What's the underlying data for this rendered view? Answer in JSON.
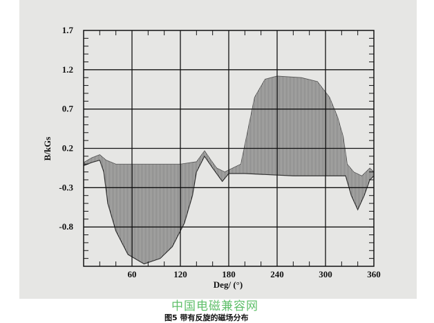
{
  "chart_data": {
    "type": "area",
    "title": "",
    "caption": "图5 带有反旋的磁场分布",
    "watermark": "中国电磁兼容网",
    "xlabel": "Deg/ (°)",
    "ylabel": "B/kGs",
    "xlim": [
      0,
      360
    ],
    "ylim": [
      -1.3,
      1.7
    ],
    "xticks": [
      60,
      120,
      180,
      240,
      300,
      360
    ],
    "xtick_labels": [
      "60",
      "120",
      "180",
      "240",
      "300",
      "360"
    ],
    "yticks": [
      1.7,
      1.2,
      0.7,
      0.2,
      -0.3,
      -0.8
    ],
    "ytick_labels": [
      "1.7",
      "1.2",
      "0.7",
      "0.2",
      "-0.3",
      "-0.8"
    ],
    "grid": true,
    "series": [
      {
        "role": "upper-envelope",
        "x": [
          0,
          10,
          20,
          28,
          40,
          60,
          90,
          120,
          140,
          150,
          158,
          165,
          175,
          185,
          195,
          205,
          212,
          225,
          240,
          270,
          290,
          305,
          315,
          322,
          327,
          335,
          345,
          355,
          360
        ],
        "y": [
          0.02,
          0.08,
          0.12,
          0.05,
          0.0,
          0.0,
          0.0,
          0.0,
          0.03,
          0.17,
          0.05,
          -0.05,
          -0.1,
          -0.05,
          0.0,
          0.5,
          0.85,
          1.08,
          1.12,
          1.1,
          1.05,
          0.85,
          0.6,
          0.35,
          0.0,
          -0.1,
          -0.15,
          -0.05,
          -0.1
        ]
      },
      {
        "role": "lower-envelope",
        "x": [
          0,
          10,
          20,
          25,
          30,
          40,
          55,
          75,
          95,
          110,
          125,
          135,
          140,
          150,
          160,
          172,
          180,
          200,
          260,
          325,
          332,
          340,
          348,
          355,
          360
        ],
        "y": [
          -0.02,
          0.02,
          0.05,
          -0.1,
          -0.5,
          -0.85,
          -1.15,
          -1.27,
          -1.2,
          -1.05,
          -0.75,
          -0.4,
          -0.1,
          0.1,
          -0.05,
          -0.22,
          -0.12,
          -0.12,
          -0.15,
          -0.15,
          -0.4,
          -0.58,
          -0.4,
          -0.2,
          -0.15
        ]
      }
    ],
    "colors": {
      "fill": "#8a8a8a",
      "grid": "#111111",
      "background": "#e6e6e4"
    }
  }
}
